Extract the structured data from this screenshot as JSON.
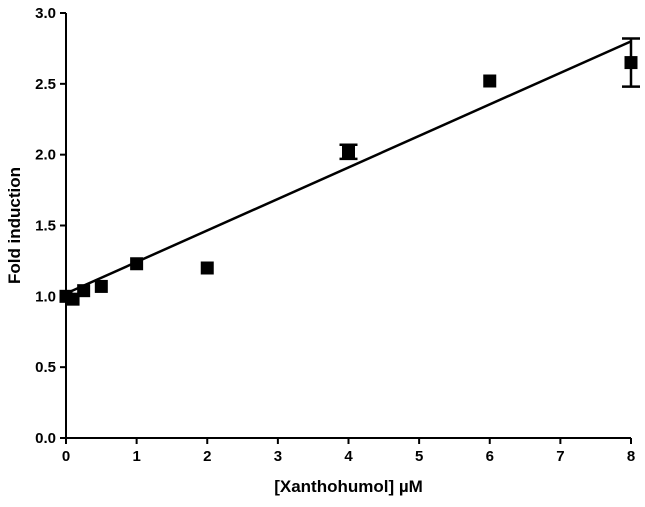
{
  "chart_data": {
    "type": "scatter",
    "title": "",
    "xlabel": "[Xanthohumol] µM",
    "ylabel": "Fold induction",
    "xlim": [
      0,
      8
    ],
    "ylim": [
      0,
      3
    ],
    "x_ticks": [
      "0",
      "1",
      "2",
      "3",
      "4",
      "5",
      "6",
      "7",
      "8"
    ],
    "y_ticks": [
      "0.0",
      "0.5",
      "1.0",
      "1.5",
      "2.0",
      "2.5",
      "3.0"
    ],
    "grid": false,
    "legend": "none",
    "colors": {
      "marker": "#000000",
      "line": "#000000"
    },
    "series": [
      {
        "x": [
          0,
          0.1,
          0.25,
          0.5,
          1,
          2,
          4,
          6,
          8
        ],
        "y": [
          1.0,
          0.98,
          1.04,
          1.07,
          1.23,
          1.2,
          2.02,
          2.52,
          2.65
        ],
        "error": [
          0,
          0,
          0,
          0,
          0,
          0,
          0.05,
          0,
          0.17
        ],
        "marker": "square"
      }
    ],
    "fit_line": {
      "x": [
        0,
        8
      ],
      "y": [
        1.02,
        2.8
      ]
    }
  }
}
